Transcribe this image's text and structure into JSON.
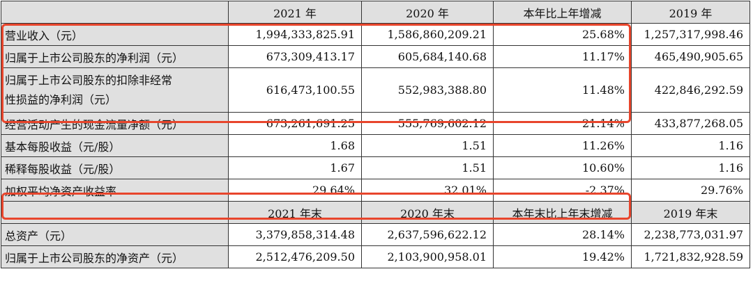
{
  "header1": [
    "",
    "2021 年",
    "2020 年",
    "本年比上年增减",
    "2019 年"
  ],
  "rows1": [
    {
      "label": "营业收入（元）",
      "v2021": "1,994,333,825.91",
      "v2020": "1,586,860,209.21",
      "change": "25.68%",
      "v2019": "1,257,317,998.46"
    },
    {
      "label": "归属于上市公司股东的净利润（元）",
      "v2021": "673,309,413.17",
      "v2020": "605,684,140.68",
      "change": "11.17%",
      "v2019": "465,490,905.65"
    },
    {
      "label_line1": "归属于上市公司股东的扣除非经常",
      "label_line2": "性损益的净利润（元）",
      "v2021": "616,473,100.55",
      "v2020": "552,983,388.80",
      "change": "11.48%",
      "v2019": "422,846,292.59"
    },
    {
      "label": "经营活动产生的现金流量净额（元）",
      "v2021": "673,261,691.25",
      "v2020": "555,769,602.12",
      "change": "21.14%",
      "v2019": "433,877,268.05"
    },
    {
      "label": "基本每股收益（元/股）",
      "v2021": "1.68",
      "v2020": "1.51",
      "change": "11.26%",
      "v2019": "1.16"
    },
    {
      "label": "稀释每股收益（元/股）",
      "v2021": "1.67",
      "v2020": "1.51",
      "change": "10.60%",
      "v2019": "1.16"
    },
    {
      "label": "加权平均净资产收益率",
      "v2021": "29.64%",
      "v2020": "32.01%",
      "change": "-2.37%",
      "v2019": "29.76%"
    }
  ],
  "header2": [
    "",
    "2021 年末",
    "2020 年末",
    "本年末比上年末增减",
    "2019 年末"
  ],
  "rows2": [
    {
      "label": "总资产（元）",
      "v2021": "3,379,858,314.48",
      "v2020": "2,637,596,622.12",
      "change": "28.14%",
      "v2019": "2,238,773,031.97"
    },
    {
      "label": "归属于上市公司股东的净资产（元）",
      "v2021": "2,512,476,209.50",
      "v2020": "2,103,900,958.01",
      "change": "19.42%",
      "v2019": "1,721,832,928.59"
    }
  ],
  "highlight_color": "#e8452c"
}
